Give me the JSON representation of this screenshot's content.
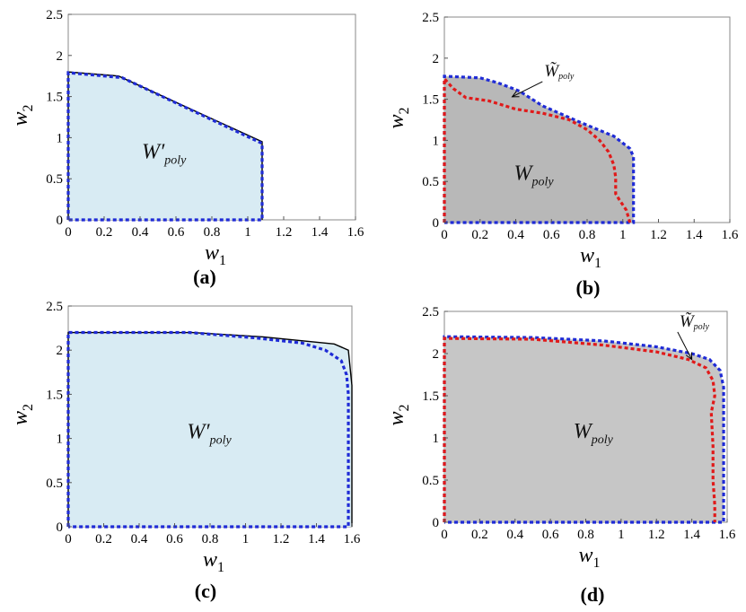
{
  "chart_data": [
    {
      "type": "area",
      "caption": "(a)",
      "xlabel": "w1",
      "ylabel": "w2",
      "xlim": [
        0,
        1.6
      ],
      "ylim": [
        0,
        2.5
      ],
      "xticks": [
        "0",
        "0.2",
        "0.4",
        "0.6",
        "0.8",
        "1",
        "1.2",
        "1.4",
        "1.6"
      ],
      "yticks": [
        "0",
        "0.5",
        "1",
        "1.5",
        "2",
        "2.5"
      ],
      "fill_color": "#d8ebf3",
      "region_label": {
        "text": "W′",
        "sub": "poly",
        "at": [
          0.41,
          0.75
        ]
      },
      "series": [
        {
          "role": "black-solid",
          "color": "#000000",
          "points": [
            [
              0,
              0
            ],
            [
              0,
              1.8
            ],
            [
              0.28,
              1.75
            ],
            [
              1.08,
              0.95
            ],
            [
              1.08,
              0
            ]
          ]
        },
        {
          "role": "blue-dashed",
          "color": "#1f2bd6",
          "points": [
            [
              0,
              0
            ],
            [
              0,
              1.79
            ],
            [
              0.3,
              1.73
            ],
            [
              1.08,
              0.93
            ],
            [
              1.08,
              0
            ],
            [
              0,
              0
            ]
          ]
        }
      ]
    },
    {
      "type": "area",
      "caption": "(b)",
      "xlabel": "w1",
      "ylabel": "w2",
      "xlim": [
        0,
        1.6
      ],
      "ylim": [
        0,
        2.5
      ],
      "xticks": [
        "0",
        "0.2",
        "0.4",
        "0.6",
        "0.8",
        "1",
        "1.2",
        "1.4",
        "1.6"
      ],
      "yticks": [
        "0",
        "0.5",
        "1",
        "1.5",
        "2",
        "2.5"
      ],
      "fill_color": "#b8b8b8",
      "region_label": {
        "text": "W",
        "sub": "poly",
        "at": [
          0.39,
          0.52
        ]
      },
      "annotation": {
        "text": "W̃",
        "sub": "poly",
        "at": [
          0.56,
          1.78
        ],
        "arrow_to": [
          0.38,
          1.53
        ]
      },
      "series": [
        {
          "role": "blue-dashed",
          "color": "#1f2bd6",
          "points": [
            [
              0,
              0
            ],
            [
              0,
              1.78
            ],
            [
              0.2,
              1.76
            ],
            [
              0.3,
              1.7
            ],
            [
              0.42,
              1.6
            ],
            [
              0.55,
              1.42
            ],
            [
              0.75,
              1.23
            ],
            [
              0.95,
              1.05
            ],
            [
              1.04,
              0.9
            ],
            [
              1.06,
              0.8
            ],
            [
              1.06,
              0
            ],
            [
              0,
              0
            ]
          ]
        },
        {
          "role": "red-dashed",
          "color": "#e01a1a",
          "points": [
            [
              0,
              0
            ],
            [
              0,
              1.75
            ],
            [
              0.05,
              1.63
            ],
            [
              0.12,
              1.52
            ],
            [
              0.25,
              1.48
            ],
            [
              0.4,
              1.38
            ],
            [
              0.55,
              1.33
            ],
            [
              0.7,
              1.25
            ],
            [
              0.8,
              1.13
            ],
            [
              0.87,
              1.0
            ],
            [
              0.92,
              0.86
            ],
            [
              0.95,
              0.7
            ],
            [
              0.96,
              0.55
            ],
            [
              0.96,
              0.35
            ],
            [
              0.98,
              0.28
            ],
            [
              1.02,
              0.15
            ],
            [
              1.04,
              0
            ]
          ]
        }
      ]
    },
    {
      "type": "area",
      "caption": "(c)",
      "xlabel": "w1",
      "ylabel": "w2",
      "xlim": [
        0,
        1.6
      ],
      "ylim": [
        0,
        2.5
      ],
      "xticks": [
        "0",
        "0.2",
        "0.4",
        "0.6",
        "0.8",
        "1",
        "1.2",
        "1.4",
        "1.6"
      ],
      "yticks": [
        "0",
        "0.5",
        "1",
        "1.5",
        "2",
        "2.5"
      ],
      "fill_color": "#d8ebf3",
      "region_label": {
        "text": "W′",
        "sub": "poly",
        "at": [
          0.67,
          1.0
        ]
      },
      "series": [
        {
          "role": "black-solid",
          "color": "#000000",
          "points": [
            [
              0,
              0
            ],
            [
              0,
              2.2
            ],
            [
              0.7,
              2.2
            ],
            [
              1.1,
              2.15
            ],
            [
              1.5,
              2.07
            ],
            [
              1.58,
              2.0
            ],
            [
              1.6,
              1.6
            ],
            [
              1.6,
              0
            ]
          ]
        },
        {
          "role": "blue-dashed",
          "color": "#1f2bd6",
          "points": [
            [
              0,
              0
            ],
            [
              0,
              2.2
            ],
            [
              0.68,
              2.2
            ],
            [
              1.05,
              2.14
            ],
            [
              1.32,
              2.08
            ],
            [
              1.45,
              2.0
            ],
            [
              1.54,
              1.88
            ],
            [
              1.57,
              1.72
            ],
            [
              1.58,
              1.5
            ],
            [
              1.58,
              0
            ],
            [
              0,
              0
            ]
          ]
        }
      ]
    },
    {
      "type": "area",
      "caption": "(d)",
      "xlabel": "w1",
      "ylabel": "w2",
      "xlim": [
        0,
        1.6
      ],
      "ylim": [
        0,
        2.5
      ],
      "xticks": [
        "0",
        "0.2",
        "0.4",
        "0.6",
        "0.8",
        "1",
        "1.2",
        "1.4",
        "1.6"
      ],
      "yticks": [
        "0",
        "0.5",
        "1",
        "1.5",
        "2",
        "2.5"
      ],
      "fill_color": "#c6c6c6",
      "region_label": {
        "text": "W",
        "sub": "poly",
        "at": [
          0.73,
          1.0
        ]
      },
      "annotation": {
        "text": "W̃",
        "sub": "poly",
        "at": [
          1.33,
          2.32
        ],
        "arrow_to": [
          1.4,
          1.93
        ]
      },
      "series": [
        {
          "role": "blue-dashed",
          "color": "#1f2bd6",
          "points": [
            [
              0,
              0
            ],
            [
              0,
              2.2
            ],
            [
              0.5,
              2.19
            ],
            [
              0.9,
              2.15
            ],
            [
              1.2,
              2.08
            ],
            [
              1.4,
              2.0
            ],
            [
              1.5,
              1.93
            ],
            [
              1.56,
              1.8
            ],
            [
              1.58,
              1.6
            ],
            [
              1.58,
              1.0
            ],
            [
              1.58,
              0
            ],
            [
              0,
              0
            ]
          ]
        },
        {
          "role": "red-dashed",
          "color": "#e01a1a",
          "points": [
            [
              0,
              0
            ],
            [
              0,
              2.18
            ],
            [
              0.5,
              2.17
            ],
            [
              0.9,
              2.1
            ],
            [
              1.2,
              2.02
            ],
            [
              1.38,
              1.93
            ],
            [
              1.48,
              1.83
            ],
            [
              1.52,
              1.68
            ],
            [
              1.53,
              1.5
            ],
            [
              1.51,
              1.3
            ],
            [
              1.52,
              0.9
            ],
            [
              1.52,
              0.5
            ],
            [
              1.53,
              0.2
            ],
            [
              1.53,
              0
            ]
          ]
        }
      ]
    }
  ]
}
